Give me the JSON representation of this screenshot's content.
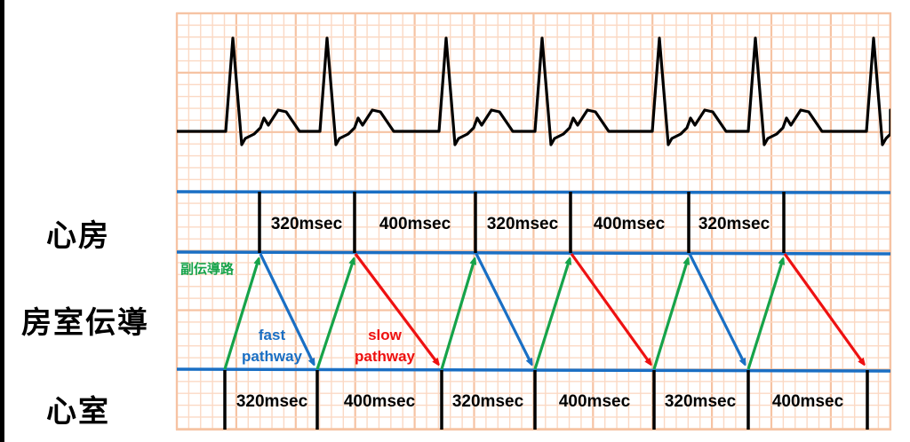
{
  "labels": {
    "atrium": "心房",
    "av_conduction": "房室伝導",
    "ventricle": "心室",
    "accessory_pathway": "副伝導路",
    "fast_pathway_line1": "fast",
    "fast_pathway_line2": "pathway",
    "slow_pathway_line1": "slow",
    "slow_pathway_line2": "pathway"
  },
  "atrial_intervals": [
    "320msec",
    "400msec",
    "320msec",
    "400msec",
    "320msec"
  ],
  "ventricular_intervals": [
    "320msec",
    "400msec",
    "320msec",
    "400msec",
    "320msec",
    "400msec"
  ],
  "colors": {
    "grid_minor": "#fbd9c4",
    "grid_major": "#f6c3a3",
    "level_line": "#1a6fc4",
    "accessory_arrow": "#16a34a",
    "fast_arrow": "#1a6fc4",
    "slow_arrow": "#ee1111",
    "ecg": "#000000"
  },
  "pathway_sequence": [
    "fast",
    "slow",
    "fast",
    "slow",
    "fast",
    "slow"
  ]
}
